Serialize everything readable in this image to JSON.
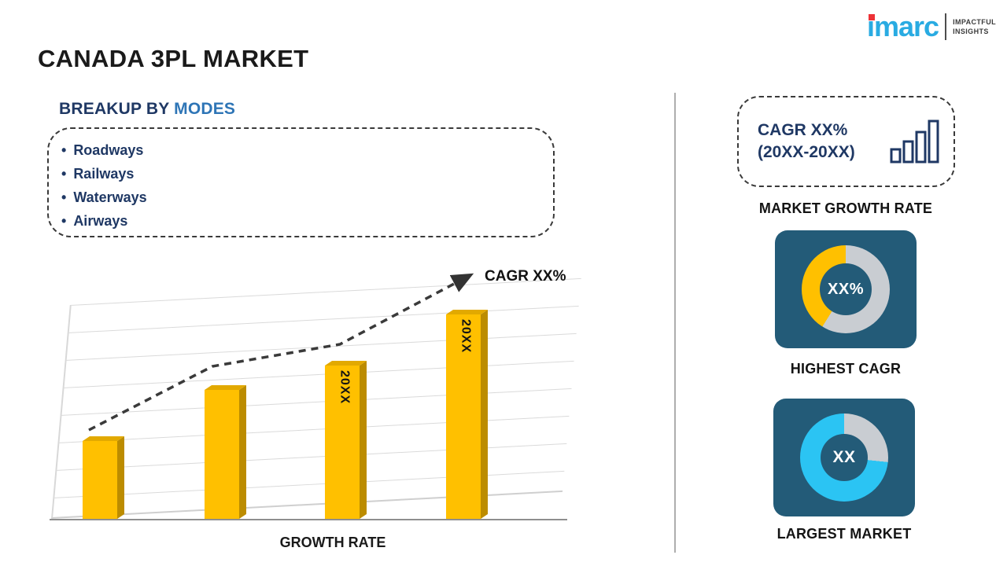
{
  "page_title": "CANADA 3PL MARKET",
  "logo": {
    "brand": "imarc",
    "tagline": [
      "IMPACTFUL",
      "INSIGHTS"
    ]
  },
  "breakup": {
    "heading_prefix": "BREAKUP BY ",
    "heading_highlight": "MODES",
    "items": [
      "Roadways",
      "Railways",
      "Waterways",
      "Airways"
    ]
  },
  "chart_data": {
    "type": "bar",
    "title": "",
    "categories": [
      "",
      "",
      "20XX",
      "20XX"
    ],
    "values": [
      38,
      63,
      75,
      100
    ],
    "values_note": "relative bar heights in percent of tallest bar; no numeric axis shown in image",
    "bar_labels": [
      "",
      "",
      "20XX",
      "20XX"
    ],
    "xlabel": "GROWTH RATE",
    "ylabel": "",
    "trend_annotation": "CAGR XX%",
    "legend": "none",
    "grid": "horizontal gridlines on skewed 3D panel",
    "bar_color": "#FFC000"
  },
  "right_panel": {
    "growth_box": {
      "line1": "CAGR XX%",
      "line2": "(20XX-20XX)"
    },
    "growth_box_caption": "MARKET GROWTH RATE",
    "highest_cagr": {
      "value": "XX%",
      "caption": "HIGHEST CAGR",
      "arc_color": "#FFC000"
    },
    "largest_market": {
      "value": "XX",
      "caption": "LARGEST MARKET",
      "arc_color": "#2BC4F3"
    }
  },
  "icons": {
    "growth_box_icon": "bar-chart-icon",
    "trend_icon": "dashed-arrow-icon"
  },
  "colors": {
    "navy_text": "#1F3864",
    "highlight_blue": "#2E75B6",
    "bar_gold": "#FFC000",
    "bar_gold_dark": "#BC8C00",
    "card_bg": "#235B78",
    "donut_gray": "#C9CDD2",
    "donut_gold": "#FFC000",
    "donut_cyan": "#2BC4F3",
    "logo_cyan": "#29ABE2",
    "logo_red": "#ED3237"
  }
}
